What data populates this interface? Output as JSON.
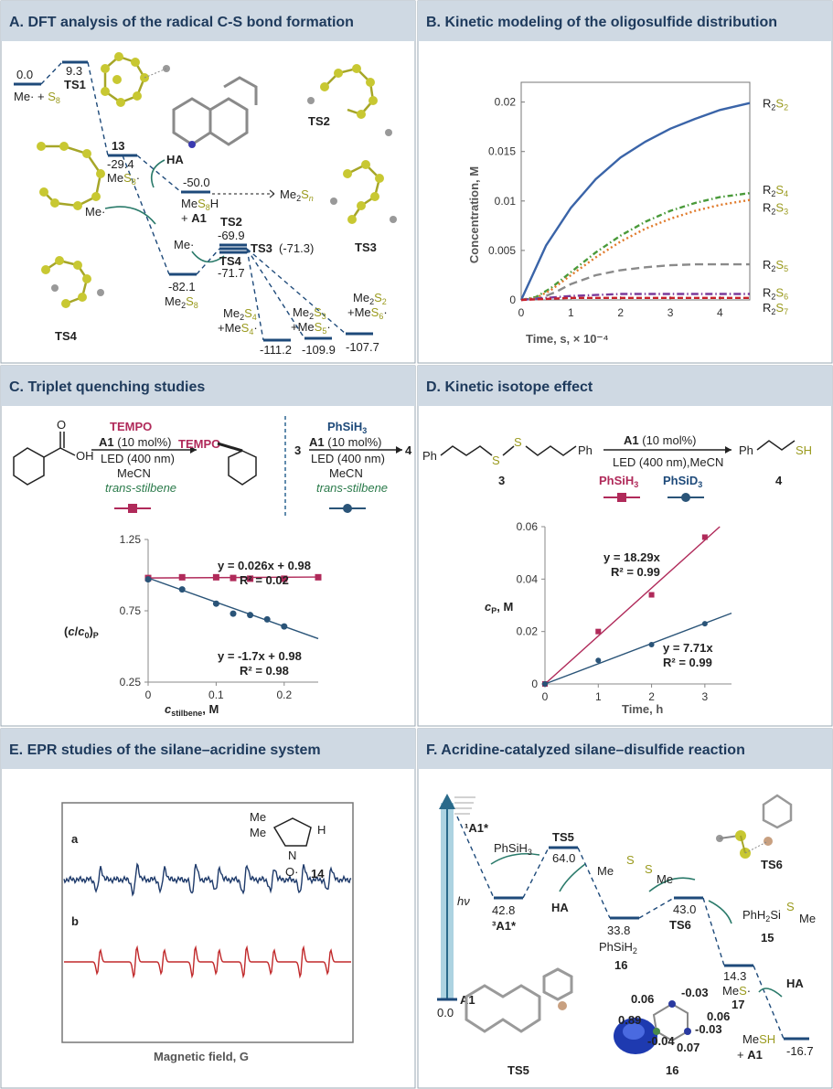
{
  "panels": {
    "A": {
      "title": "A. DFT analysis of the radical C-S bond formation"
    },
    "B": {
      "title": "B. Kinetic modeling of the oligosulfide distribution"
    },
    "C": {
      "title": "C. Triplet quenching studies"
    },
    "D": {
      "title": "D. Kinetic isotope effect"
    },
    "E": {
      "title": "E. EPR studies of the silane–acridine system"
    },
    "F": {
      "title": "F. Acridine-catalyzed silane–disulfide reaction"
    }
  },
  "panelA": {
    "levels": [
      {
        "id": "start",
        "energy": "0.0",
        "label": "Me· + S8"
      },
      {
        "id": "TS1",
        "energy": "9.3",
        "label": "TS1"
      },
      {
        "id": "I13",
        "energy": "-29.4",
        "label": "13",
        "sub": "MeS8·"
      },
      {
        "id": "MeS8H",
        "energy": "-50.0",
        "label": "MeS8H",
        "sub": "+ A1"
      },
      {
        "id": "Me2S8",
        "energy": "-82.1",
        "label": "Me2S8"
      },
      {
        "id": "TS2",
        "energy": "-69.9",
        "label": "TS2"
      },
      {
        "id": "TS3",
        "energy": "(-71.3)",
        "label": "TS3"
      },
      {
        "id": "TS4",
        "energy": "-71.7",
        "label": "TS4"
      },
      {
        "id": "p1",
        "energy": "-111.2",
        "label": "Me2S4",
        "sub": "+MeS4·"
      },
      {
        "id": "p2",
        "energy": "-109.9",
        "label": "Me2S3",
        "sub": "+MeS5·"
      },
      {
        "id": "p3",
        "energy": "-107.7",
        "label": "Me2S2",
        "sub": "+MeS6·"
      }
    ],
    "ha_label": "HA",
    "me_label": "Me·",
    "me2sn_label": "Me2Sn",
    "struct_labels": [
      "TS2",
      "TS3",
      "TS4"
    ]
  },
  "chart_data": {
    "type": "line",
    "title": "",
    "xlabel": "Time, s, × 10⁻⁴",
    "ylabel": "Concentration, M",
    "xlim": [
      0,
      4.6
    ],
    "ylim": [
      0,
      0.022
    ],
    "xticks": [
      "0",
      "1",
      "2",
      "3",
      "4"
    ],
    "yticks": [
      "0",
      "0.005",
      "0.01",
      "0.015",
      "0.02"
    ],
    "grid": false,
    "legend": "inline-right",
    "series": [
      {
        "name": "R2S2",
        "color": "#3a64a8",
        "dash": "",
        "values": [
          [
            0,
            0
          ],
          [
            0.2,
            0.0022
          ],
          [
            0.5,
            0.0055
          ],
          [
            1,
            0.0093
          ],
          [
            1.5,
            0.0122
          ],
          [
            2,
            0.0144
          ],
          [
            2.5,
            0.016
          ],
          [
            3,
            0.0173
          ],
          [
            3.5,
            0.0183
          ],
          [
            4,
            0.0192
          ],
          [
            4.6,
            0.0199
          ]
        ]
      },
      {
        "name": "R2S4",
        "color": "#4a9a3a",
        "dash": "6 3 1.5 3",
        "values": [
          [
            0,
            0
          ],
          [
            0.3,
            0.0003
          ],
          [
            0.6,
            0.0012
          ],
          [
            1,
            0.0028
          ],
          [
            1.5,
            0.0048
          ],
          [
            2,
            0.0065
          ],
          [
            2.5,
            0.0079
          ],
          [
            3,
            0.009
          ],
          [
            3.5,
            0.0098
          ],
          [
            4,
            0.0104
          ],
          [
            4.6,
            0.0108
          ]
        ]
      },
      {
        "name": "R2S3",
        "color": "#e07a2a",
        "dash": "2 3",
        "values": [
          [
            0,
            0
          ],
          [
            0.3,
            0.0002
          ],
          [
            0.6,
            0.001
          ],
          [
            1,
            0.0025
          ],
          [
            1.5,
            0.0043
          ],
          [
            2,
            0.0059
          ],
          [
            2.5,
            0.0072
          ],
          [
            3,
            0.0082
          ],
          [
            3.5,
            0.009
          ],
          [
            4,
            0.0096
          ],
          [
            4.6,
            0.0101
          ]
        ]
      },
      {
        "name": "R2S5",
        "color": "#8a8a8a",
        "dash": "9 5",
        "values": [
          [
            0,
            0
          ],
          [
            0.4,
            0.0002
          ],
          [
            0.7,
            0.0008
          ],
          [
            1,
            0.0016
          ],
          [
            1.5,
            0.0025
          ],
          [
            2,
            0.003
          ],
          [
            2.5,
            0.0033
          ],
          [
            3,
            0.0035
          ],
          [
            3.5,
            0.0036
          ],
          [
            4,
            0.0036
          ],
          [
            4.6,
            0.0036
          ]
        ]
      },
      {
        "name": "R2S6",
        "color": "#7a3a9a",
        "dash": "8 3 1.5 3",
        "values": [
          [
            0,
            0
          ],
          [
            0.5,
            0.0002
          ],
          [
            1,
            0.0004
          ],
          [
            1.5,
            0.0005
          ],
          [
            2,
            0.0006
          ],
          [
            3,
            0.0006
          ],
          [
            4.6,
            0.0006
          ]
        ]
      },
      {
        "name": "R2S7",
        "color": "#c8202a",
        "dash": "6 3",
        "values": [
          [
            0,
            0
          ],
          [
            0.5,
            0.0001
          ],
          [
            1,
            0.0002
          ],
          [
            2,
            0.0002
          ],
          [
            3,
            0.0002
          ],
          [
            4.6,
            0.0002
          ]
        ]
      }
    ]
  },
  "panelC": {
    "reaction_left": {
      "reagent": "TEMPO",
      "cat": "A1 (10 mol%)",
      "light": "LED (400 nm)",
      "solvent": "MeCN",
      "additive": "trans-stilbene",
      "product_prefix": "TEMPO"
    },
    "reaction_right": {
      "reagent": "PhSiH3",
      "start": "3",
      "cat": "A1 (10 mol%)",
      "light": "LED (400 nm)",
      "solvent": "MeCN",
      "additive": "trans-stilbene",
      "product": "4"
    },
    "plot": {
      "ylabel": "(c/c0)P",
      "xlabel": "c stilbene, M",
      "xticks": [
        "0",
        "0.1",
        "0.2"
      ],
      "yticks": [
        "0.25",
        "0.75",
        "1.25"
      ],
      "xlim": [
        0,
        0.25
      ],
      "ylim": [
        0.25,
        1.25
      ],
      "series": [
        {
          "name": "TEMPO",
          "color": "#b02a5a",
          "marker": "square",
          "eq": "y = 0.026x + 0.98",
          "r2": "R² = 0.02",
          "points": [
            [
              0,
              0.98
            ],
            [
              0.05,
              0.985
            ],
            [
              0.1,
              0.985
            ],
            [
              0.125,
              0.98
            ],
            [
              0.15,
              0.975
            ],
            [
              0.2,
              0.975
            ],
            [
              0.25,
              0.985
            ]
          ],
          "fit": [
            0.026,
            0.98
          ]
        },
        {
          "name": "PhSiH3",
          "color": "#2a5478",
          "marker": "circle",
          "eq": "y = -1.7x + 0.98",
          "r2": "R² = 0.98",
          "points": [
            [
              0,
              0.97
            ],
            [
              0.05,
              0.9
            ],
            [
              0.1,
              0.8
            ],
            [
              0.125,
              0.73
            ],
            [
              0.15,
              0.72
            ],
            [
              0.175,
              0.69
            ],
            [
              0.2,
              0.64
            ]
          ],
          "fit": [
            -1.7,
            0.98
          ]
        }
      ]
    }
  },
  "panelD": {
    "reaction": {
      "start": "3",
      "cat": "A1 (10 mol%)",
      "cond": "LED (400 nm),MeCN",
      "product": "4",
      "leg1": "PhSiH3",
      "leg2": "PhSiD3"
    },
    "plot": {
      "ylabel": "cP, M",
      "xlabel": "Time, h",
      "xticks": [
        "0",
        "1",
        "2",
        "3"
      ],
      "yticks": [
        "0",
        "0.02",
        "0.04",
        "0.06"
      ],
      "xlim": [
        0,
        3.5
      ],
      "ylim": [
        0,
        0.06
      ],
      "series": [
        {
          "name": "PhSiH3",
          "color": "#b02a5a",
          "marker": "square",
          "eq": "y = 18.29x",
          "r2": "R² = 0.99",
          "slope": 0.01829,
          "points": [
            [
              0,
              0
            ],
            [
              1,
              0.02
            ],
            [
              2,
              0.034
            ],
            [
              3,
              0.056
            ]
          ]
        },
        {
          "name": "PhSiD3",
          "color": "#2a5478",
          "marker": "circle",
          "eq": "y = 7.71x",
          "r2": "R² = 0.99",
          "slope": 0.00771,
          "points": [
            [
              0,
              0
            ],
            [
              1,
              0.009
            ],
            [
              2,
              0.015
            ],
            [
              3,
              0.023
            ]
          ]
        }
      ]
    }
  },
  "panelE": {
    "trace_a": "a",
    "trace_b": "b",
    "compound": "14",
    "xlabel": "Magnetic field, G"
  },
  "panelF": {
    "levels": [
      {
        "id": "A1",
        "energy": "0.0",
        "label": "A1"
      },
      {
        "id": "1A1",
        "label": "¹A1*"
      },
      {
        "id": "3A1",
        "energy": "42.8",
        "label": "³A1*"
      },
      {
        "id": "TS5",
        "energy": "64.0",
        "label": "TS5"
      },
      {
        "id": "I16",
        "energy": "33.8",
        "label": "16",
        "sub": "PhSiH2"
      },
      {
        "id": "TS6",
        "energy": "43.0",
        "label": "TS6"
      },
      {
        "id": "I17",
        "energy": "14.3",
        "label": "17",
        "sub": "MeS·"
      },
      {
        "id": "end",
        "energy": "-16.7",
        "label": "MeSH",
        "sub": "+ A1"
      }
    ],
    "hv": "hν",
    "phsih3": "PhSiH3",
    "ha1": "HA",
    "ha2": "HA",
    "product15": "15",
    "ts6_label": "TS6",
    "ts5_struct": "TS5",
    "spin_label": "16",
    "spins": [
      "0.06",
      "-0.03",
      "0.06",
      "0.89",
      "-0.04",
      "-0.03",
      "0.07"
    ]
  }
}
